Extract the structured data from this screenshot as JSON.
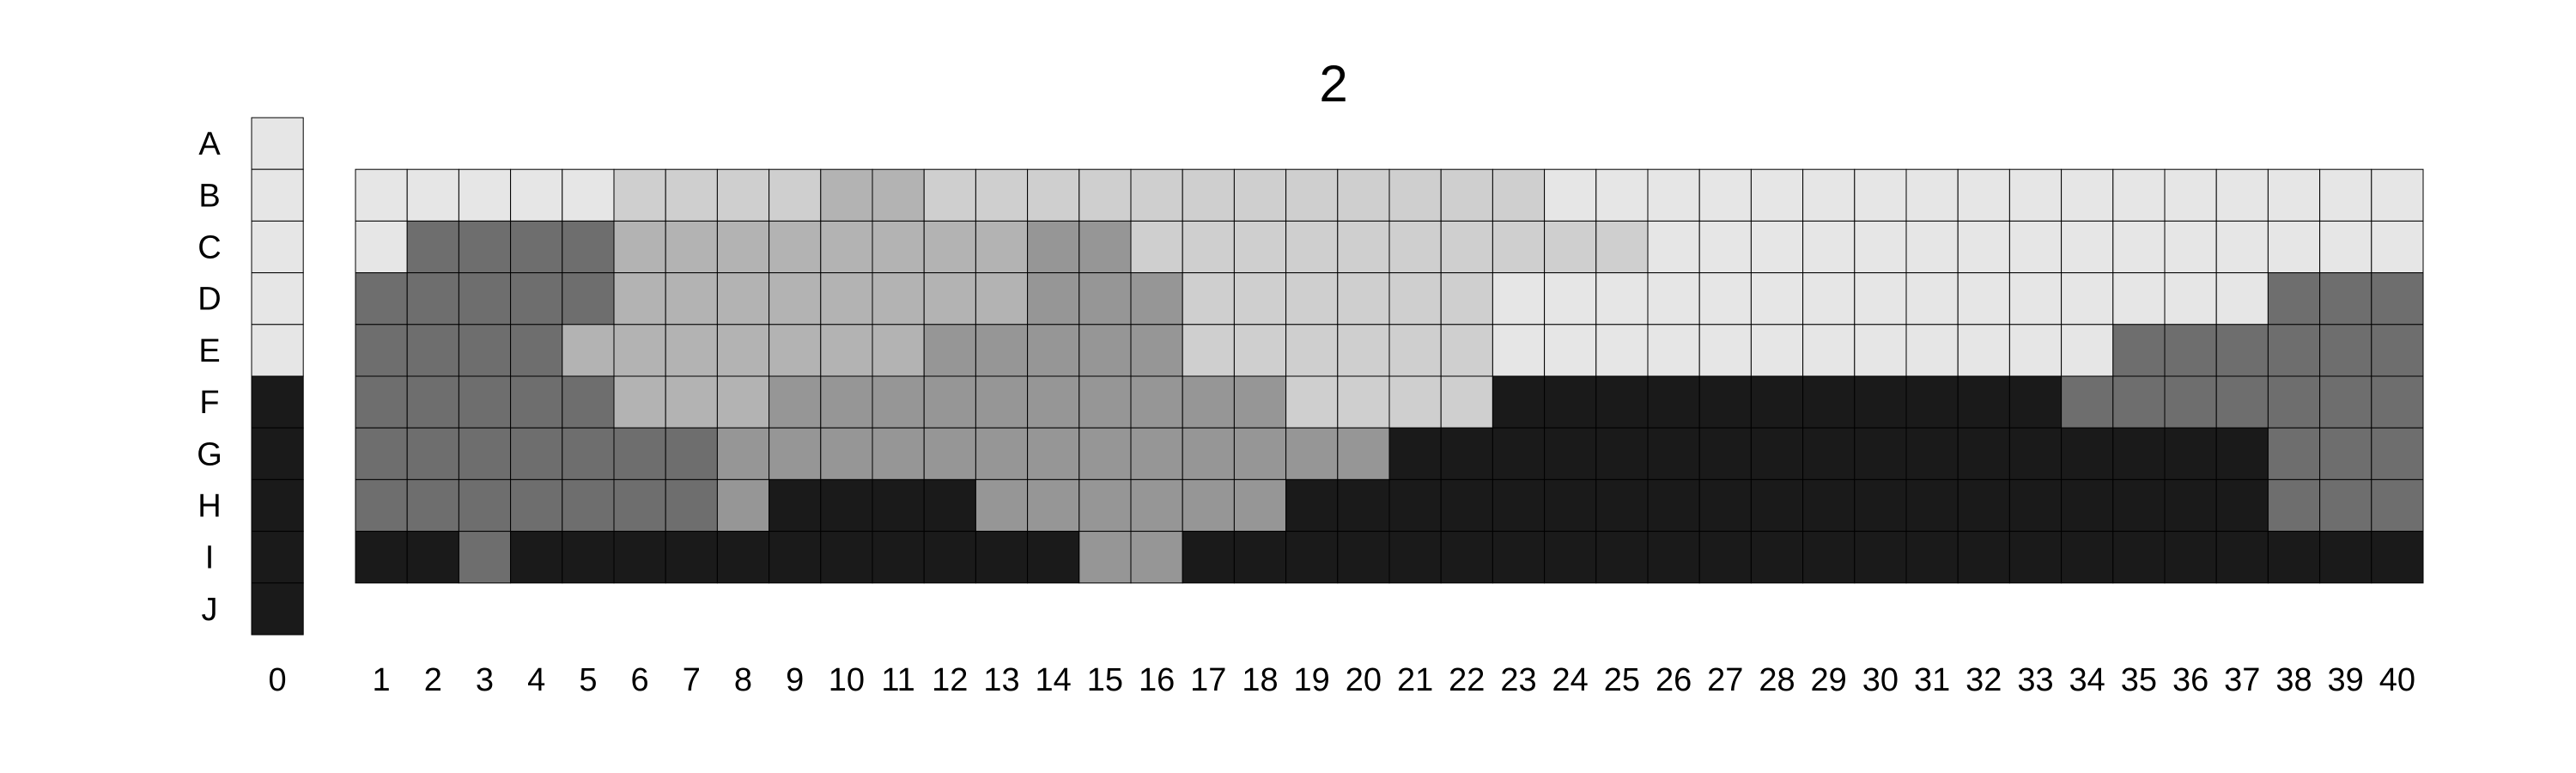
{
  "chart_data": {
    "type": "heatmap",
    "title": "2",
    "row_labels": [
      "A",
      "B",
      "C",
      "D",
      "E",
      "F",
      "G",
      "H",
      "I",
      "J"
    ],
    "column_0": {
      "label": "0",
      "levels": [
        0,
        0,
        0,
        0,
        0,
        5,
        5,
        5,
        5,
        5
      ]
    },
    "columns": [
      "1",
      "2",
      "3",
      "4",
      "5",
      "6",
      "7",
      "8",
      "9",
      "10",
      "11",
      "12",
      "13",
      "14",
      "15",
      "16",
      "17",
      "18",
      "19",
      "20",
      "21",
      "22",
      "23",
      "24",
      "25",
      "26",
      "27",
      "28",
      "29",
      "30",
      "31",
      "32",
      "33",
      "34",
      "35",
      "36",
      "37",
      "38",
      "39",
      "40"
    ],
    "grid_rows": [
      "B",
      "C",
      "D",
      "E",
      "F",
      "G",
      "H",
      "I"
    ],
    "levels": [
      [
        0,
        0,
        0,
        0,
        0,
        1,
        1,
        1,
        1,
        2,
        2,
        1,
        1,
        1,
        1,
        1,
        1,
        1,
        1,
        1,
        1,
        1,
        1,
        0,
        0,
        0,
        0,
        0,
        0,
        0,
        0,
        0,
        0,
        0,
        0,
        0,
        0,
        0,
        0,
        0
      ],
      [
        0,
        4,
        4,
        4,
        4,
        2,
        2,
        2,
        2,
        2,
        2,
        2,
        2,
        3,
        3,
        1,
        1,
        1,
        1,
        1,
        1,
        1,
        1,
        1,
        1,
        0,
        0,
        0,
        0,
        0,
        0,
        0,
        0,
        0,
        0,
        0,
        0,
        0,
        0,
        0
      ],
      [
        4,
        4,
        4,
        4,
        4,
        2,
        2,
        2,
        2,
        2,
        2,
        2,
        2,
        3,
        3,
        3,
        1,
        1,
        1,
        1,
        1,
        1,
        0,
        0,
        0,
        0,
        0,
        0,
        0,
        0,
        0,
        0,
        0,
        0,
        0,
        0,
        0,
        4,
        4,
        4
      ],
      [
        4,
        4,
        4,
        4,
        2,
        2,
        2,
        2,
        2,
        2,
        2,
        3,
        3,
        3,
        3,
        3,
        1,
        1,
        1,
        1,
        1,
        1,
        0,
        0,
        0,
        0,
        0,
        0,
        0,
        0,
        0,
        0,
        0,
        0,
        4,
        4,
        4,
        4,
        4,
        4
      ],
      [
        4,
        4,
        4,
        4,
        4,
        2,
        2,
        2,
        3,
        3,
        3,
        3,
        3,
        3,
        3,
        3,
        3,
        3,
        1,
        1,
        1,
        1,
        5,
        5,
        5,
        5,
        5,
        5,
        5,
        5,
        5,
        5,
        5,
        4,
        4,
        4,
        4,
        4,
        4,
        4
      ],
      [
        4,
        4,
        4,
        4,
        4,
        4,
        4,
        3,
        3,
        3,
        3,
        3,
        3,
        3,
        3,
        3,
        3,
        3,
        3,
        3,
        5,
        5,
        5,
        5,
        5,
        5,
        5,
        5,
        5,
        5,
        5,
        5,
        5,
        5,
        5,
        5,
        5,
        4,
        4,
        4
      ],
      [
        4,
        4,
        4,
        4,
        4,
        4,
        4,
        3,
        5,
        5,
        5,
        5,
        3,
        3,
        3,
        3,
        3,
        3,
        5,
        5,
        5,
        5,
        5,
        5,
        5,
        5,
        5,
        5,
        5,
        5,
        5,
        5,
        5,
        5,
        5,
        5,
        5,
        4,
        4,
        4
      ],
      [
        5,
        5,
        4,
        5,
        5,
        5,
        5,
        5,
        5,
        5,
        5,
        5,
        5,
        5,
        3,
        3,
        5,
        5,
        5,
        5,
        5,
        5,
        5,
        5,
        5,
        5,
        5,
        5,
        5,
        5,
        5,
        5,
        5,
        5,
        5,
        5,
        5,
        5,
        5,
        5
      ]
    ],
    "palette": [
      "#e6e6e6",
      "#cfcfcf",
      "#b3b3b3",
      "#969696",
      "#6e6e6e",
      "#1a1a1a"
    ],
    "grid_lines": true,
    "legend": "none"
  }
}
